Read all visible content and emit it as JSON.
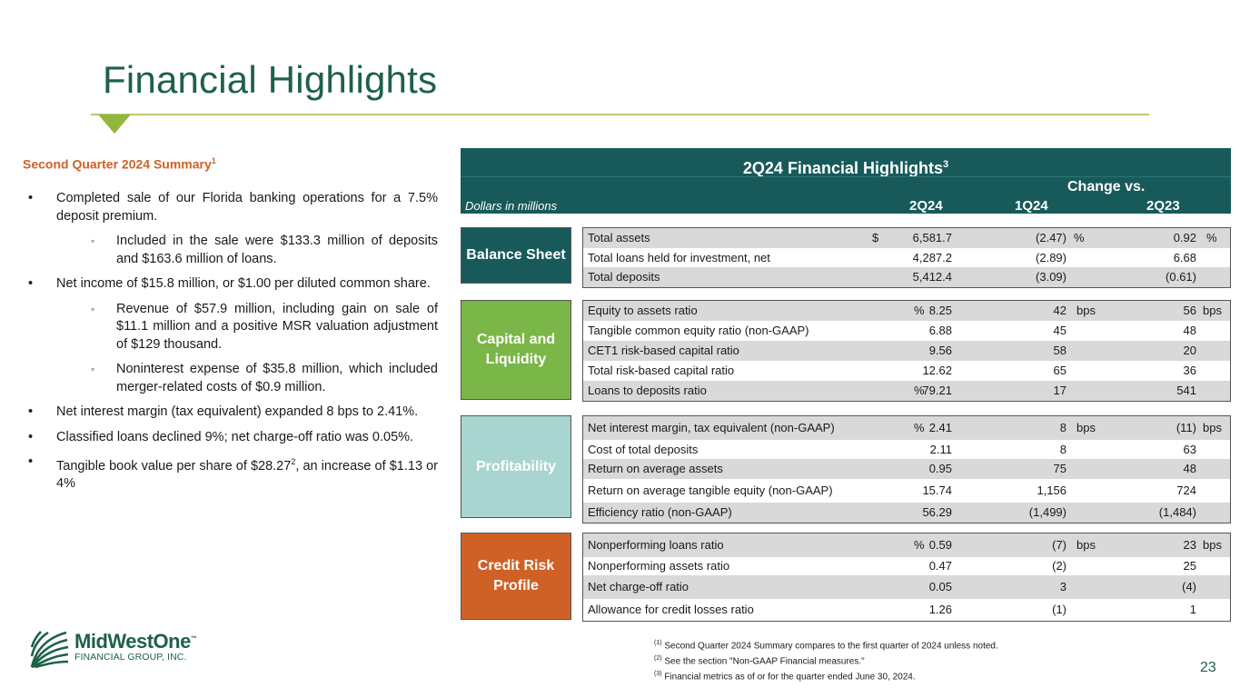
{
  "title": "Financial Highlights",
  "summary": {
    "heading": "Second Quarter 2024 Summary",
    "heading_sup": "1",
    "bullets": [
      {
        "level": 1,
        "text": "Completed sale of our Florida banking operations for a 7.5% deposit premium."
      },
      {
        "level": 2,
        "text": "Included in the sale were $133.3 million of deposits and $163.6 million of loans."
      },
      {
        "level": 1,
        "text": "Net income of $15.8 million, or $1.00 per diluted common share."
      },
      {
        "level": 2,
        "text": "Revenue of $57.9 million, including gain on sale of $11.1 million and a positive MSR valuation adjustment of $129 thousand."
      },
      {
        "level": 2,
        "text": "Noninterest expense of $35.8 million, which included merger-related costs of $0.9 million."
      },
      {
        "level": 1,
        "text": "Net interest margin (tax equivalent) expanded 8 bps to 2.41%."
      },
      {
        "level": 1,
        "text": "Classified loans declined 9%; net charge-off ratio was 0.05%."
      },
      {
        "level": 1,
        "text_pre": "Tangible book value per share of $28.27",
        "sup": "2",
        "text_post": ", an increase of $1.13 or 4%"
      }
    ]
  },
  "table": {
    "title": "2Q24 Financial Highlights",
    "title_sup": "3",
    "dimension": "Dollars in millions",
    "change_label": "Change vs.",
    "columns": [
      "2Q24",
      "1Q24",
      "2Q23"
    ],
    "groups": [
      {
        "label": "Balance Sheet",
        "color": "#185a5a",
        "rows": [
          {
            "label": "Total assets",
            "cur_prefix": "$",
            "v1": "6,581.7",
            "v2": "(2.47)",
            "u2": "%",
            "v3": "0.92",
            "u3": "%"
          },
          {
            "label": "Total loans held for investment, net",
            "v1": "4,287.2",
            "v2": "(2.89)",
            "v3": "6.68"
          },
          {
            "label": "Total deposits",
            "v1": "5,412.4",
            "v2": "(3.09)",
            "v3": "(0.61)"
          }
        ]
      },
      {
        "label": "Capital and Liquidity",
        "color": "#7ab648",
        "rows": [
          {
            "label": "Equity to assets ratio",
            "v1": "8.25",
            "u1": "%",
            "v2": "42",
            "u2": "bps",
            "v3": "56",
            "u3": "bps"
          },
          {
            "label": "Tangible common equity ratio (non-GAAP)",
            "v1": "6.88",
            "v2": "45",
            "v3": "48"
          },
          {
            "label": "CET1 risk-based capital ratio",
            "v1": "9.56",
            "v2": "58",
            "v3": "20"
          },
          {
            "label": "Total risk-based capital ratio",
            "v1": "12.62",
            "v2": "65",
            "v3": "36"
          },
          {
            "label": "Loans to deposits ratio",
            "v1": "79.21",
            "u1": "%",
            "v2": "17",
            "v3": "541"
          }
        ]
      },
      {
        "label": "Profitability",
        "color": "#a8d5cf",
        "rows": [
          {
            "label": "Net interest margin, tax equivalent (non-GAAP)",
            "v1": "2.41",
            "u1": "%",
            "v2": "8",
            "u2": "bps",
            "v3": "(11)",
            "u3": "bps"
          },
          {
            "label": "Cost of total deposits",
            "v1": "2.11",
            "v2": "8",
            "v3": "63"
          },
          {
            "label": "Return on average assets",
            "v1": "0.95",
            "v2": "75",
            "v3": "48"
          },
          {
            "label": "Return on average tangible equity (non-GAAP)",
            "v1": "15.74",
            "v2": "1,156",
            "v3": "724"
          },
          {
            "label": "Efficiency ratio (non-GAAP)",
            "v1": "56.29",
            "v2": "(1,499)",
            "v3": "(1,484)"
          }
        ]
      },
      {
        "label": "Credit Risk Profile",
        "color": "#cf6127",
        "rows": [
          {
            "label": "Nonperforming loans ratio",
            "v1": "0.59",
            "u1": "%",
            "v2": "(7)",
            "u2": "bps",
            "v3": "23",
            "u3": "bps"
          },
          {
            "label": "Nonperforming assets ratio",
            "v1": "0.47",
            "v2": "(2)",
            "v3": "25"
          },
          {
            "label": "Net charge-off ratio",
            "v1": "0.05",
            "v2": "3",
            "v3": "(4)"
          },
          {
            "label": "Allowance for credit losses ratio",
            "v1": "1.26",
            "v2": "(1)",
            "v3": "1"
          }
        ]
      }
    ]
  },
  "footnotes": [
    {
      "n": "(1)",
      "text": "Second Quarter 2024 Summary compares to the first quarter of 2024 unless noted."
    },
    {
      "n": "(2)",
      "text": "See the section \"Non-GAAP Financial measures.\""
    },
    {
      "n": "(3)",
      "text": "Financial metrics as of or for the quarter ended June 30, 2024."
    }
  ],
  "logo": {
    "name": "MidWestOne",
    "tm": "™",
    "sub": "FINANCIAL GROUP, INC."
  },
  "page_number": "23"
}
